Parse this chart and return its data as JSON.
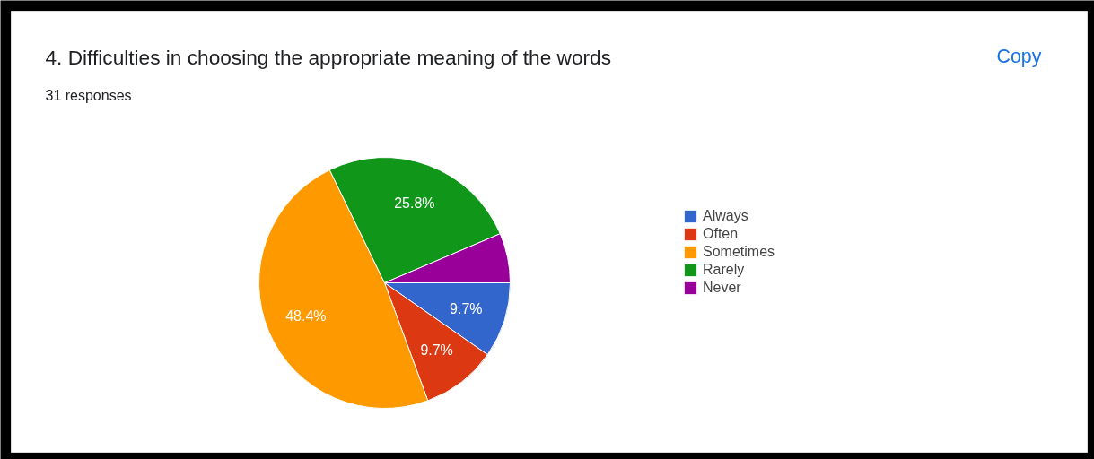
{
  "chart_data": {
    "type": "pie",
    "title": "4.  Difficulties in choosing the appropriate meaning of the words",
    "subtitle": "31 responses",
    "categories": [
      "Always",
      "Often",
      "Sometimes",
      "Rarely",
      "Never"
    ],
    "values": [
      9.7,
      9.7,
      48.4,
      25.8,
      6.4
    ],
    "colors": [
      "#3366cc",
      "#dc3912",
      "#ff9900",
      "#109618",
      "#990099"
    ],
    "value_labels": [
      "9.7%",
      "9.7%",
      "48.4%",
      "25.8%",
      null
    ],
    "legend": "right",
    "annotations": [
      "Copy"
    ]
  }
}
